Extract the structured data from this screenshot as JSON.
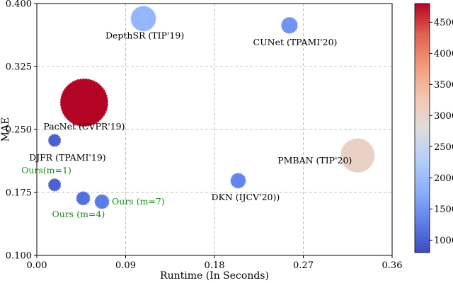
{
  "chart_data": {
    "type": "scatter",
    "xlabel": "Runtime (In Seconds)",
    "ylabel": "MAE",
    "xlim": [
      0.0,
      0.36
    ],
    "ylim": [
      0.1,
      0.4
    ],
    "xticks": [
      "0.00",
      "0.09",
      "0.18",
      "0.27",
      "0.36"
    ],
    "yticks": [
      "0.100",
      "0.175",
      "0.250",
      "0.325",
      "0.400"
    ],
    "grid": true,
    "size_encodes": "color value (model size)",
    "colorbar": {
      "label": "",
      "range": [
        800,
        4800
      ],
      "ticks": [
        "1000",
        "1500",
        "2000",
        "2500",
        "3000",
        "3500",
        "4000",
        "4500"
      ],
      "colormap": "coolwarm"
    },
    "points": [
      {
        "label": "DepthSR (TIP'19)",
        "x": 0.108,
        "y": 0.382,
        "value": 1900,
        "ours": false
      },
      {
        "label": "CUNet (TPAMI'20)",
        "x": 0.256,
        "y": 0.374,
        "value": 1500,
        "ours": false
      },
      {
        "label": "PacNet (CVPR'19)",
        "x": 0.048,
        "y": 0.282,
        "value": 4800,
        "ours": false
      },
      {
        "label": "DJFR (TPAMI'19)",
        "x": 0.018,
        "y": 0.237,
        "value": 1000,
        "ours": false
      },
      {
        "label": "PMBAN (TIP'20)",
        "x": 0.325,
        "y": 0.219,
        "value": 3050,
        "ours": false
      },
      {
        "label": "DKN (IJCV'20))",
        "x": 0.204,
        "y": 0.189,
        "value": 1350,
        "ours": false
      },
      {
        "label": "Ours(m=1)",
        "x": 0.018,
        "y": 0.184,
        "value": 1000,
        "ours": true
      },
      {
        "label": "Ours (m=4)",
        "x": 0.047,
        "y": 0.168,
        "value": 1150,
        "ours": true
      },
      {
        "label": "Ours (m=7)",
        "x": 0.066,
        "y": 0.164,
        "value": 1250,
        "ours": true
      }
    ]
  }
}
